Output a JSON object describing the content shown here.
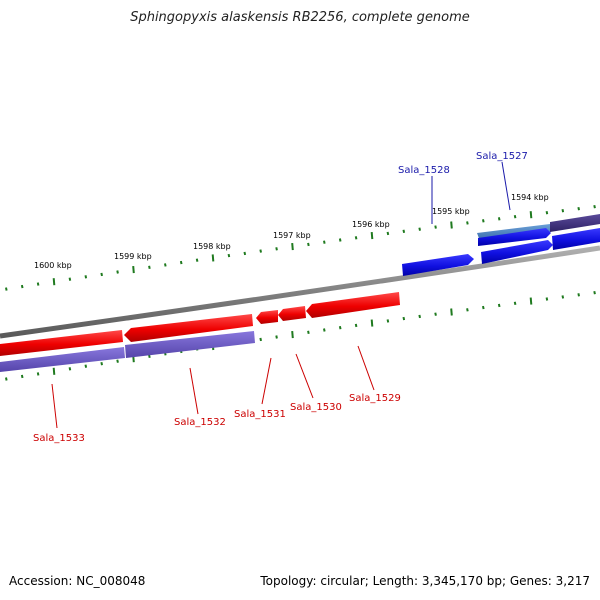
{
  "title": "Sphingopyxis alaskensis RB2256, complete genome",
  "footer": {
    "accession": "Accession: NC_008048",
    "summary": "Topology: circular; Length: 3,345,170 bp; Genes: 3,217"
  },
  "ruler_labels": [
    "1600 kbp",
    "1599 kbp",
    "1598 kbp",
    "1597 kbp",
    "1596 kbp",
    "1595 kbp",
    "1594 kbp"
  ],
  "genes": {
    "forward": [
      "Sala_1528",
      "Sala_1527"
    ],
    "reverse": [
      "Sala_1533",
      "Sala_1532",
      "Sala_1531",
      "Sala_1530",
      "Sala_1529"
    ]
  },
  "colors": {
    "forward_label": "#1a1aaa",
    "reverse_label": "#cc0000",
    "forward_gene": "#1010e0",
    "reverse_gene": "#ee0000",
    "cds_forward": "#4a3a8a",
    "cds_reverse": "#6655bb",
    "backbone": "#808080",
    "ticks": "#1f7a1f"
  }
}
